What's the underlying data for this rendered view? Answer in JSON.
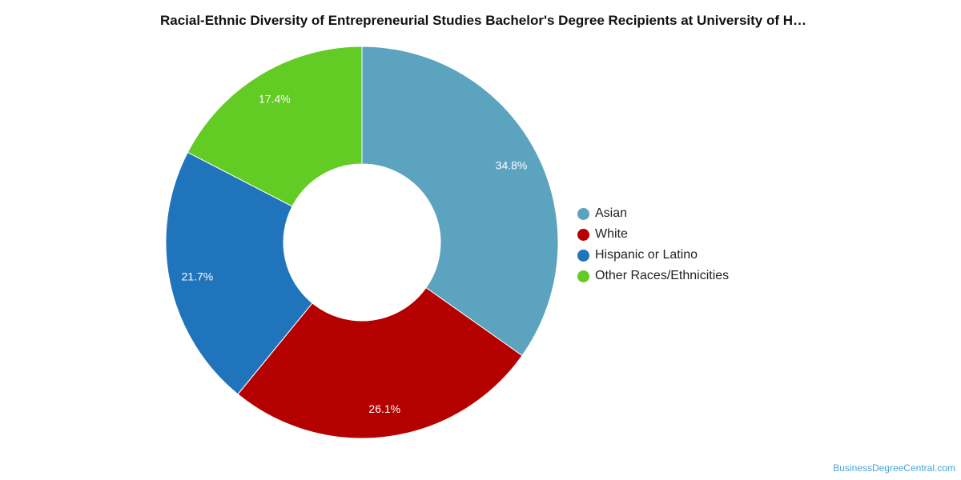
{
  "chart_data": {
    "type": "pie",
    "title": "Racial-Ethnic Diversity of Entrepreneurial Studies Bachelor's Degree Recipients at University of H…",
    "donut": true,
    "legend_position": "right",
    "slices": [
      {
        "name": "Asian",
        "value": 34.8,
        "label": "34.8%",
        "color": "#5ba3bf"
      },
      {
        "name": "White",
        "value": 26.1,
        "label": "26.1%",
        "color": "#b50000"
      },
      {
        "name": "Hispanic or Latino",
        "value": 21.7,
        "label": "21.7%",
        "color": "#1f74bb"
      },
      {
        "name": "Other Races/Ethnicities",
        "value": 17.4,
        "label": "17.4%",
        "color": "#62cc25"
      }
    ]
  },
  "watermark": "BusinessDegreeCentral.com"
}
